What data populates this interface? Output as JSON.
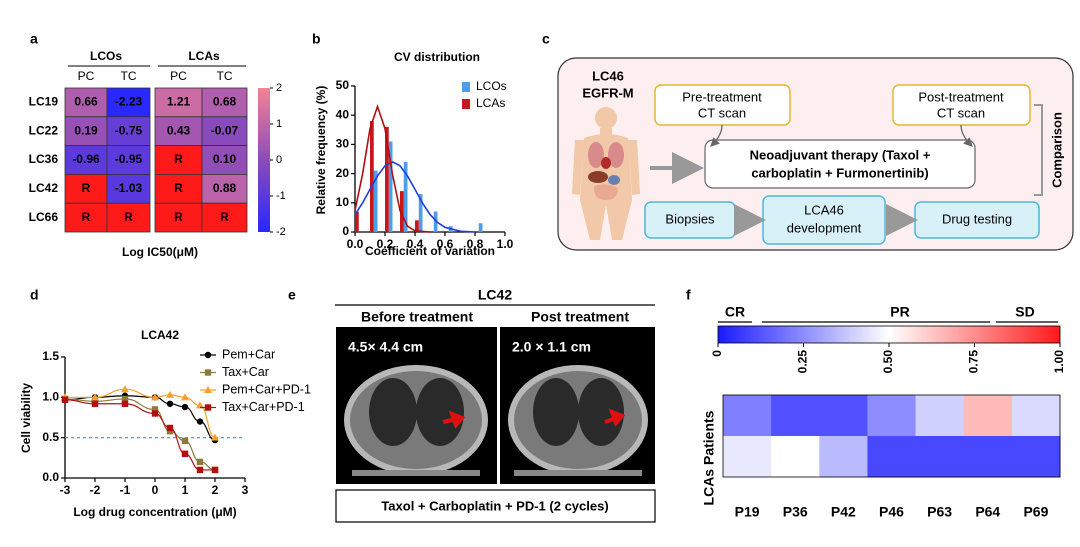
{
  "panels": {
    "a": {
      "letter": "a",
      "groups": [
        "LCOs",
        "LCAs"
      ],
      "columns": [
        "PC",
        "TC",
        "PC",
        "TC"
      ],
      "rows": [
        "LC19",
        "LC22",
        "LC36",
        "LC42",
        "LC66"
      ],
      "cells": [
        [
          "0.66",
          "-2.23",
          "1.21",
          "0.68"
        ],
        [
          "0.19",
          "-0.75",
          "0.43",
          "-0.07"
        ],
        [
          "-0.96",
          "-0.95",
          "R",
          "0.10"
        ],
        [
          "R",
          "-1.03",
          "R",
          "0.88"
        ],
        [
          "R",
          "R",
          "R",
          "R"
        ]
      ],
      "clim": [
        -2,
        2
      ],
      "colorbar_ticks": [
        2,
        1,
        0,
        -1,
        -2
      ],
      "label": "Log IC50(μM)"
    },
    "b": {
      "letter": "b",
      "title": "CV distribution",
      "ylabel": "Relative frequency (%)",
      "xlabel": "Coefficient of variation",
      "x": [
        0,
        0.1,
        0.2,
        0.3,
        0.4,
        0.5,
        0.6,
        0.7,
        0.8
      ],
      "series": [
        {
          "name": "LCOs",
          "color": "#4f9de8",
          "line_color": "#1f3fe0",
          "values": [
            0,
            21,
            31,
            24,
            13,
            7,
            2,
            0,
            3
          ],
          "fit_x": [
            0,
            0.05,
            0.1,
            0.15,
            0.2,
            0.25,
            0.3,
            0.35,
            0.4,
            0.45,
            0.5,
            0.55,
            0.6,
            0.7,
            0.8
          ],
          "fit_values": [
            6.0,
            9.9,
            14.6,
            19.2,
            22.7,
            24,
            22.7,
            19.2,
            14.6,
            9.9,
            6.0,
            3.3,
            1.6,
            0.3,
            0
          ]
        },
        {
          "name": "LCAs",
          "color": "#c8161d",
          "line_color": "#b01010",
          "values": [
            7,
            38,
            36,
            14,
            4,
            0,
            0,
            0,
            0
          ],
          "fit_x": [
            0,
            0.05,
            0.1,
            0.15,
            0.2,
            0.25,
            0.3,
            0.35,
            0.4,
            0.5
          ],
          "fit_values": [
            7.4,
            19.7,
            35.4,
            43,
            35.4,
            19.7,
            7.4,
            2.0,
            0.4,
            0
          ]
        }
      ],
      "xlim": [
        0,
        1
      ],
      "xticks": [
        {
          "value": 0,
          "label": "0.0"
        },
        0.2,
        0.4,
        0.6,
        0.8,
        {
          "value": 1,
          "label": "1.0"
        }
      ],
      "ylim": [
        0,
        50
      ],
      "yticks": [
        0,
        10,
        20,
        30,
        40,
        50
      ]
    },
    "c": {
      "letter": "c",
      "patient": [
        "LC46",
        "EGFR-M"
      ],
      "pre": [
        "Pre-treatment",
        "CT scan"
      ],
      "post": [
        "Post-treatment",
        "CT scan"
      ],
      "therapy": [
        "Neoadjuvant therapy (Taxol +",
        "carboplatin + Furmonertinib)"
      ],
      "biopsies": "Biopsies",
      "development": [
        "LCA46",
        "development"
      ],
      "testing": "Drug testing",
      "comparison": "Comparison"
    },
    "d": {
      "letter": "d",
      "title": "LCA42",
      "ylabel": "Cell viability",
      "xlabel": "Log drug concentration (μM)",
      "x": [
        -3,
        -2,
        -1,
        0,
        0.5,
        1,
        1.5,
        2
      ],
      "series": [
        {
          "name": "Pem+Car",
          "color": "#000000",
          "marker": "circle",
          "values": [
            0.97,
            1.0,
            1.02,
            1.0,
            0.92,
            0.88,
            0.7,
            0.47
          ]
        },
        {
          "name": "Tax+Car",
          "color": "#8c7a3c",
          "marker": "square",
          "values": [
            0.98,
            0.95,
            0.98,
            0.85,
            0.58,
            0.46,
            0.2,
            0.1
          ]
        },
        {
          "name": "Pem+Car+PD-1",
          "color": "#f5a030",
          "marker": "triangle",
          "values": [
            1.0,
            1.0,
            1.1,
            1.0,
            1.03,
            1.0,
            0.9,
            0.5
          ]
        },
        {
          "name": "Tax+Car+PD-1",
          "color": "#b01010",
          "marker": "square",
          "values": [
            0.97,
            0.92,
            0.92,
            0.8,
            0.62,
            0.3,
            0.1,
            0.1
          ]
        }
      ],
      "reference_line": 0.5,
      "xlim": [
        -3,
        3
      ],
      "xticks": [
        -3,
        -2,
        -1,
        0,
        1,
        2,
        3
      ],
      "ylim": [
        0,
        1.5
      ],
      "yticks": [
        {
          "value": 0,
          "label": "0.0"
        },
        0.5,
        {
          "value": 1,
          "label": "1.0"
        },
        1.5
      ]
    },
    "e": {
      "letter": "e",
      "title": "LC42",
      "before": "Before treatment",
      "after": "Post treatment",
      "before_size": "4.5× 4.4 cm",
      "after_size": "2.0 × 1.1 cm",
      "regimen": "Taxol + Carboplatin + PD-1 (2 cycles)"
    },
    "f": {
      "letter": "f",
      "responses": [
        "CR",
        "PR",
        "SD"
      ],
      "ylabel": "LCAs Patients",
      "columns": [
        "P19",
        "P36",
        "P42",
        "P46",
        "P63",
        "P64",
        "P69"
      ],
      "cells": [
        [
          0.22,
          0.12,
          0.12,
          0.25,
          0.4,
          0.65,
          0.42
        ],
        [
          0.45,
          0.5,
          0.35,
          0.1,
          0.1,
          0.1,
          0.1
        ]
      ],
      "clim": [
        0,
        1
      ],
      "colorbar_ticks": [
        0,
        0.25,
        {
          "value": 0.5,
          "label": "0.50"
        },
        0.75,
        {
          "value": 1,
          "label": "1.00"
        }
      ]
    }
  }
}
